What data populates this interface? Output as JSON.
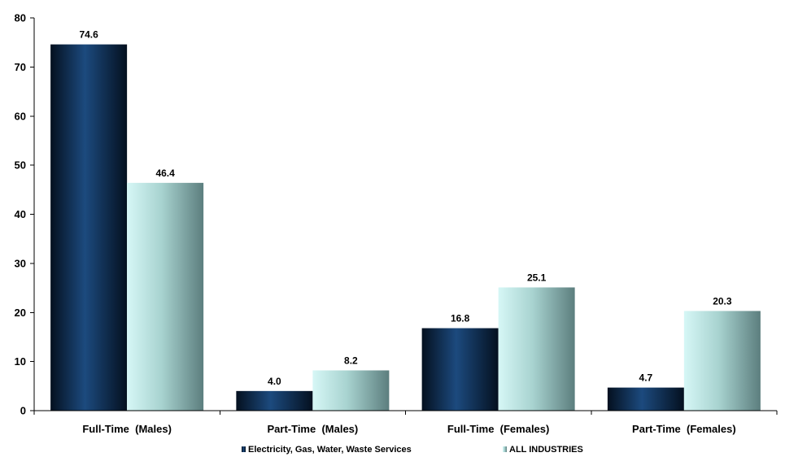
{
  "chart_data": {
    "type": "bar",
    "title": "",
    "xlabel": "",
    "ylabel": "",
    "ylim": [
      0,
      80
    ],
    "yticks": [
      0,
      10,
      20,
      30,
      40,
      50,
      60,
      70,
      80
    ],
    "grid": false,
    "legend_position": "bottom",
    "categories": [
      "Full-Time  (Males)",
      "Part-Time  (Males)",
      "Full-Time  (Females)",
      "Part-Time  (Females)"
    ],
    "series": [
      {
        "name": "Electricity, Gas, Water, Waste Services",
        "values": [
          74.6,
          4.0,
          16.8,
          4.7
        ],
        "labels": [
          "74.6",
          "4.0",
          "16.8",
          "4.7"
        ],
        "color": "#0d2b52",
        "color_light": "#1c4a7e",
        "color_dark": "#04101f"
      },
      {
        "name": "ALL INDUSTRIES",
        "values": [
          46.4,
          8.2,
          25.1,
          20.3
        ],
        "labels": [
          "46.4",
          "8.2",
          "25.1",
          "20.3"
        ],
        "color": "#a8d3d0",
        "color_light": "#d6f7f6",
        "color_dark": "#5c7e7e"
      }
    ]
  }
}
